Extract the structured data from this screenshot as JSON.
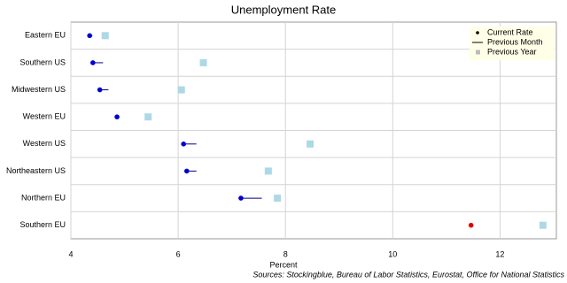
{
  "chart_data": {
    "type": "dot",
    "title": "Unemployment Rate",
    "x_label": "Percent",
    "source": "Sources: Stockingblue, Bureau of Labor Statistics, Eurostat, Office for National Statistics",
    "categories": [
      "Eastern EU",
      "Southern US",
      "Midwestern US",
      "Western EU",
      "Western US",
      "Northeastern US",
      "Northern EU",
      "Southern EU"
    ],
    "series": [
      {
        "name": "Current Rate",
        "color": "#0000cd",
        "colors": [
          "#0000cd",
          "#0000cd",
          "#0000cd",
          "#0000cd",
          "#0000cd",
          "#0000cd",
          "#0000cd",
          "#e00000"
        ],
        "values": [
          4.35,
          4.41,
          4.54,
          4.86,
          6.1,
          6.16,
          7.17,
          11.46
        ]
      },
      {
        "name": "Previous Month",
        "color": "#00008b",
        "values": [
          4.4,
          4.6,
          4.7,
          4.86,
          6.34,
          6.34,
          7.56,
          11.46
        ]
      },
      {
        "name": "Previous Year",
        "color": "#add8e6",
        "values": [
          4.64,
          6.47,
          6.06,
          5.44,
          8.46,
          7.68,
          7.85,
          12.8
        ]
      }
    ],
    "xlim": [
      4,
      13.05
    ],
    "xticks": [
      4,
      6,
      8,
      10,
      12
    ],
    "grid": true,
    "legend": "top-right"
  }
}
